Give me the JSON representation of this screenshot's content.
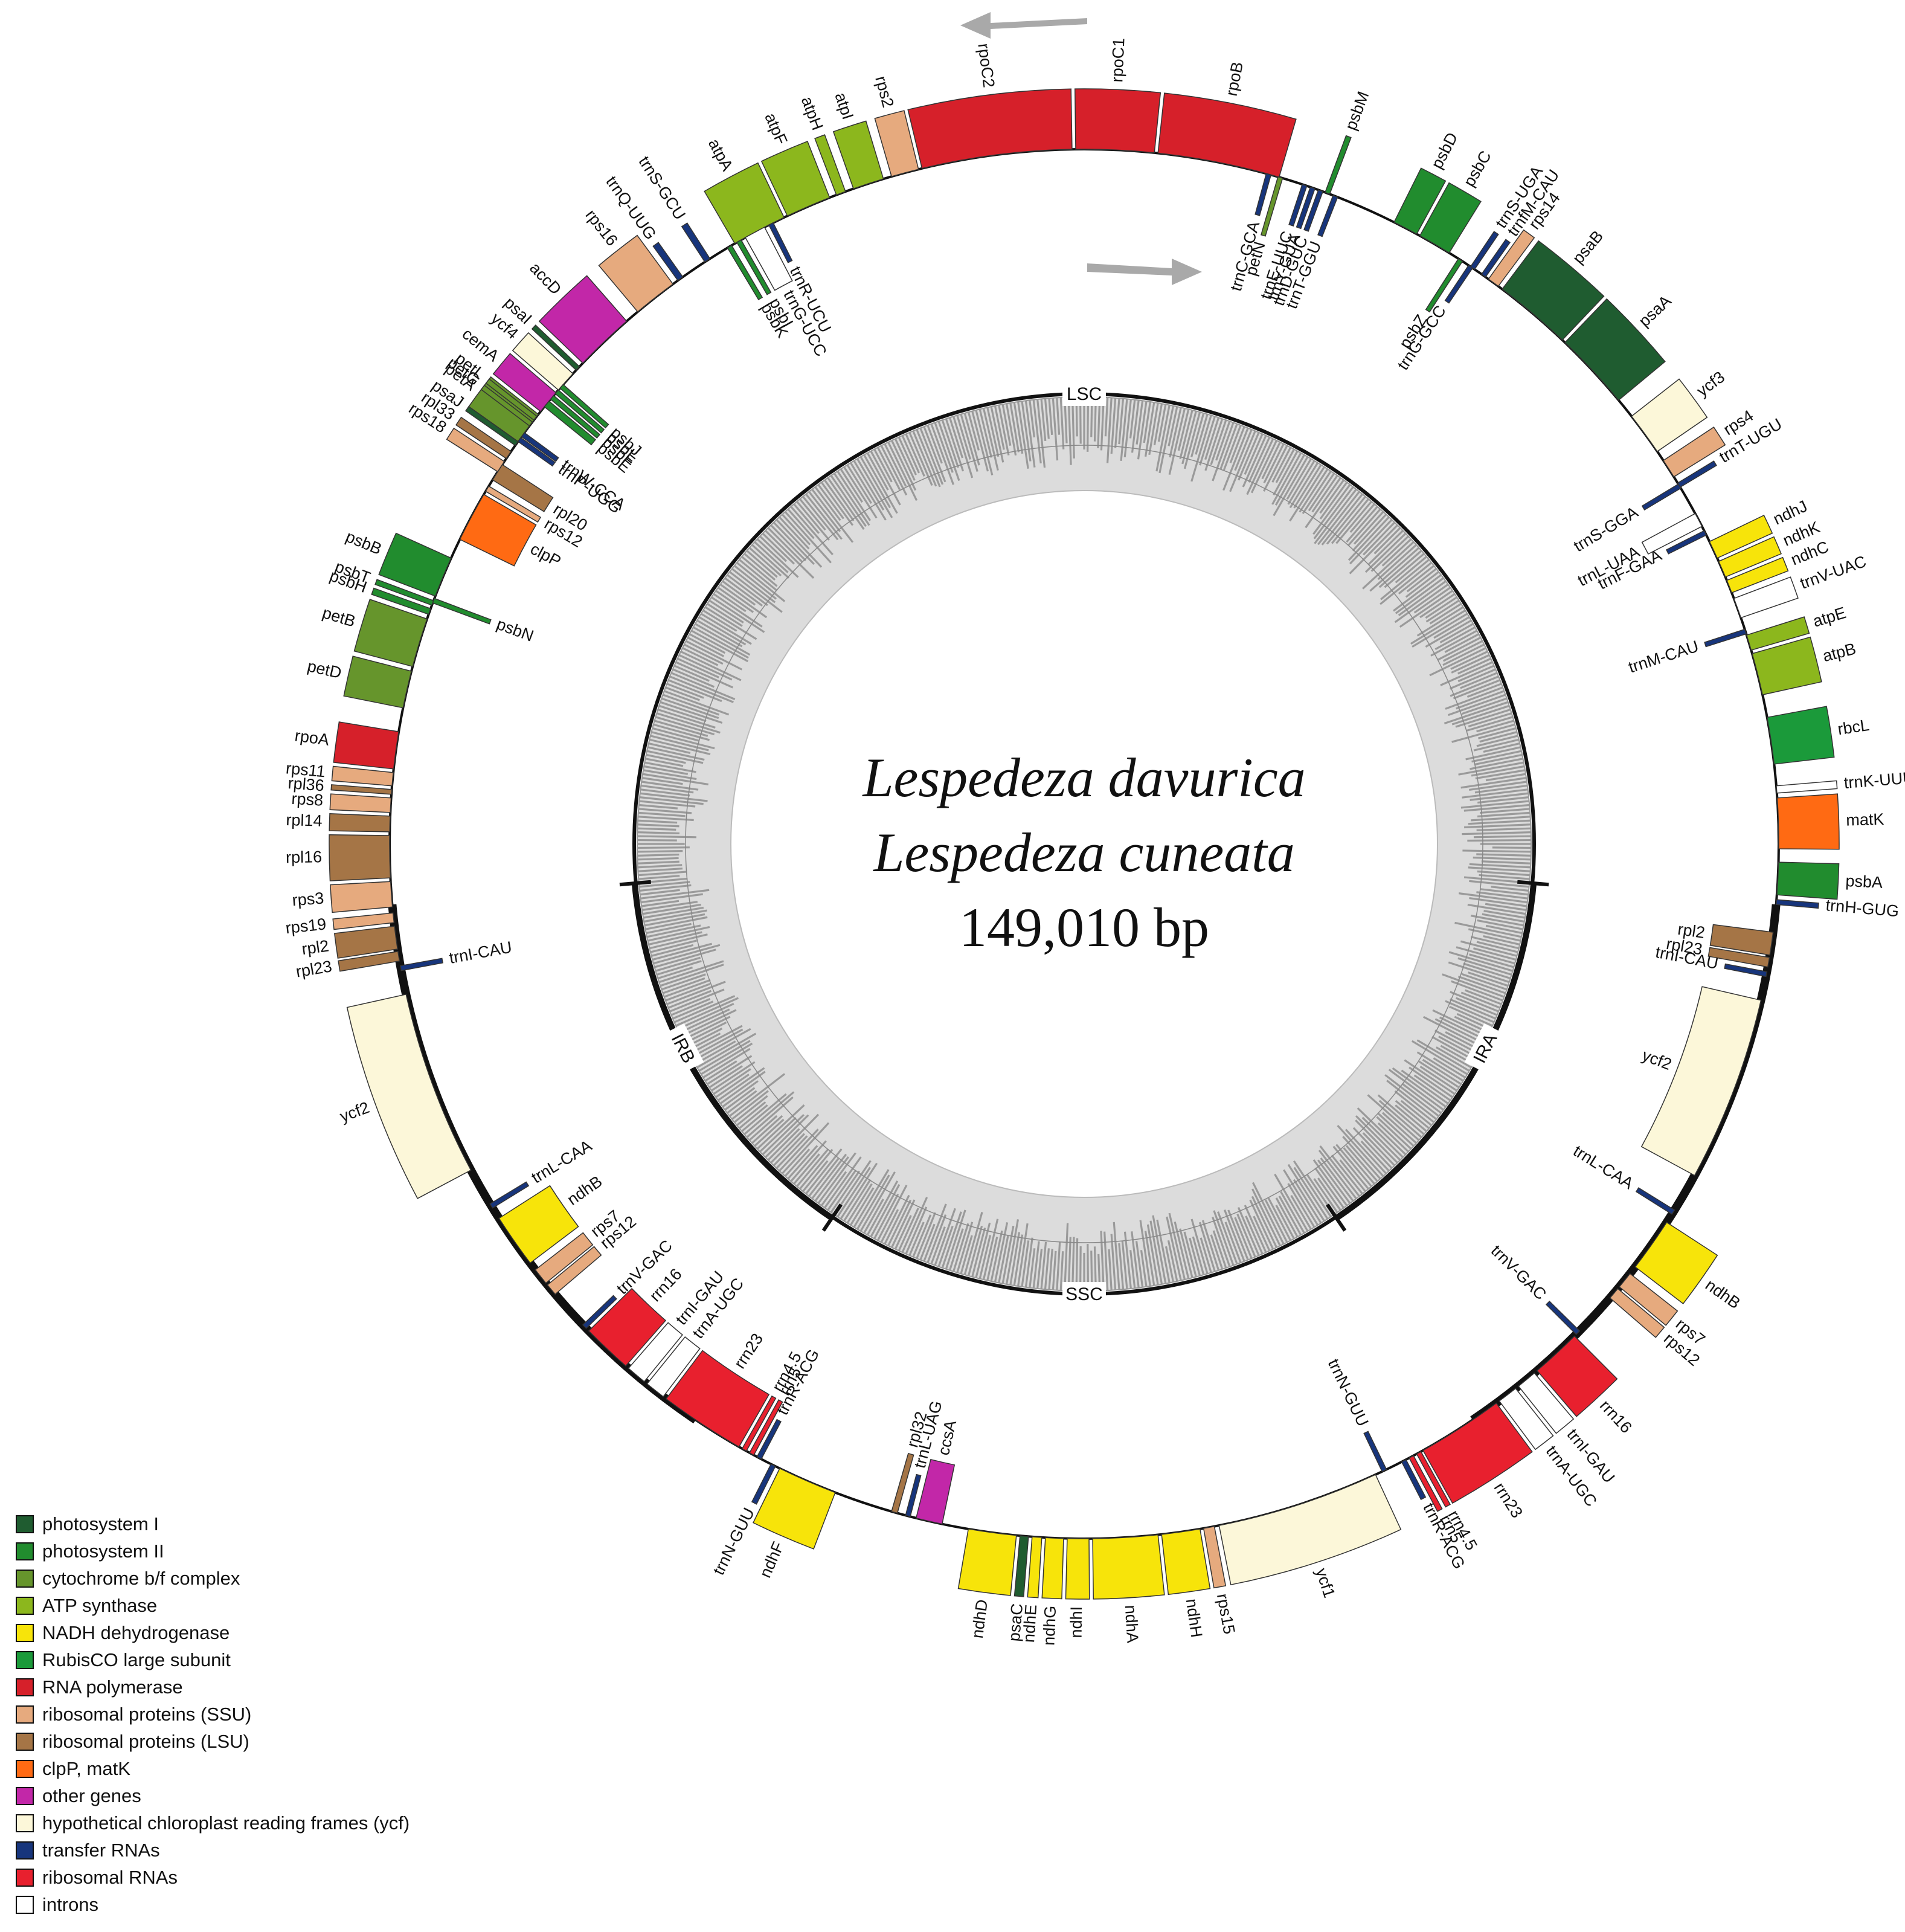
{
  "center": {
    "species_1": "Lespedeza davurica",
    "species_2": "Lespedeza cuneata",
    "genome_size": "149,010 bp"
  },
  "regions": [
    {
      "label": "LSC",
      "angle_deg": 0
    },
    {
      "label": "IRA",
      "angle_deg": 117
    },
    {
      "label": "SSC",
      "angle_deg": 180
    },
    {
      "label": "IRB",
      "angle_deg": 243
    }
  ],
  "boundaries_deg": [
    95,
    146,
    214,
    265
  ],
  "category_colors": {
    "ps1": "#1f5c30",
    "ps2": "#218c2e",
    "cyt": "#66952c",
    "atp": "#8cb71d",
    "ndh": "#f7e40a",
    "rbc": "#1b9a3a",
    "rpo": "#d6202a",
    "ssu": "#e6aa7e",
    "lsu": "#a57546",
    "clp": "#ff6a13",
    "other": "#c227a8",
    "ycf": "#fcf7d9",
    "trna": "#17357c",
    "rrna": "#e8202e",
    "intron": "#ffffff"
  },
  "genes": [
    {
      "name": "rpoC2",
      "cat": "rpo",
      "start": 346.5,
      "end": 359.0,
      "side": "out"
    },
    {
      "name": "rpoC1",
      "cat": "rpo",
      "start": 359.3,
      "end": 5.8,
      "side": "out"
    },
    {
      "name": "rpoB",
      "cat": "rpo",
      "start": 6.1,
      "end": 16.3,
      "side": "out"
    },
    {
      "name": "rps2",
      "cat": "ssu",
      "start": 343.9,
      "end": 346.2,
      "side": "out"
    },
    {
      "name": "atpI",
      "cat": "atp",
      "start": 340.6,
      "end": 343.2,
      "side": "out"
    },
    {
      "name": "atpH",
      "cat": "atp",
      "start": 339.1,
      "end": 339.9,
      "side": "out"
    },
    {
      "name": "atpF",
      "cat": "atp",
      "start": 334.7,
      "end": 338.5,
      "side": "out"
    },
    {
      "name": "atpA",
      "cat": "atp",
      "start": 329.8,
      "end": 334.4,
      "side": "out"
    },
    {
      "name": "trnS-GCU",
      "cat": "trna",
      "start": 326.9,
      "end": 327.4,
      "side": "out"
    },
    {
      "name": "trnQ-UUG",
      "cat": "trna",
      "start": 324.2,
      "end": 324.7,
      "side": "out"
    },
    {
      "name": "rps16",
      "cat": "ssu",
      "start": 320.0,
      "end": 323.7,
      "side": "out"
    },
    {
      "name": "accD",
      "cat": "other",
      "start": 313.8,
      "end": 318.8,
      "side": "out"
    },
    {
      "name": "psaI",
      "cat": "ps1",
      "start": 313.0,
      "end": 313.4,
      "side": "out"
    },
    {
      "name": "ycf4",
      "cat": "ycf",
      "start": 310.8,
      "end": 312.6,
      "side": "out"
    },
    {
      "name": "cemA",
      "cat": "other",
      "start": 308.5,
      "end": 310.5,
      "side": "out"
    },
    {
      "name": "petA",
      "cat": "cyt",
      "start": 305.3,
      "end": 308.2,
      "side": "out"
    },
    {
      "name": "psbK",
      "cat": "ps2",
      "start": 329.1,
      "end": 329.5,
      "side": "in"
    },
    {
      "name": "psbI",
      "cat": "ps2",
      "start": 330.0,
      "end": 330.4,
      "side": "in"
    },
    {
      "name": "trnG-UCC",
      "cat": "intron",
      "start": 330.8,
      "end": 332.6,
      "side": "in"
    },
    {
      "name": "trnR-UCU",
      "cat": "trna",
      "start": 333.0,
      "end": 333.4,
      "side": "in"
    },
    {
      "name": "psbM",
      "cat": "ps2",
      "start": 20.3,
      "end": 20.7,
      "side": "out"
    },
    {
      "name": "trnC-GCA",
      "cat": "trna",
      "start": 15.2,
      "end": 15.6,
      "side": "in"
    },
    {
      "name": "petN",
      "cat": "cyt",
      "start": 16.2,
      "end": 16.6,
      "side": "in"
    },
    {
      "name": "trnE-UUC",
      "cat": "trna",
      "start": 18.3,
      "end": 18.7,
      "side": "in"
    },
    {
      "name": "trnY-GUA",
      "cat": "trna",
      "start": 19.0,
      "end": 19.4,
      "side": "in"
    },
    {
      "name": "trnD-GUC",
      "cat": "trna",
      "start": 19.7,
      "end": 20.1,
      "side": "in"
    },
    {
      "name": "trnT-GGU",
      "cat": "trna",
      "start": 21.0,
      "end": 21.4,
      "side": "in"
    },
    {
      "name": "psbD",
      "cat": "ps2",
      "start": 26.5,
      "end": 28.6,
      "side": "out"
    },
    {
      "name": "psbC",
      "cat": "ps2",
      "start": 28.9,
      "end": 31.7,
      "side": "out"
    },
    {
      "name": "psbZ",
      "cat": "ps2",
      "start": 32.6,
      "end": 33.0,
      "side": "in"
    },
    {
      "name": "trnG-GCC",
      "cat": "trna",
      "start": 33.6,
      "end": 34.0,
      "side": "in"
    },
    {
      "name": "trnS-UGA",
      "cat": "trna",
      "start": 33.8,
      "end": 34.2,
      "side": "out"
    },
    {
      "name": "trnfM-CAU",
      "cat": "trna",
      "start": 34.9,
      "end": 35.3,
      "side": "out"
    },
    {
      "name": "rps14",
      "cat": "ssu",
      "start": 35.6,
      "end": 36.6,
      "side": "out"
    },
    {
      "name": "psaB",
      "cat": "ps1",
      "start": 37.0,
      "end": 43.5,
      "side": "out"
    },
    {
      "name": "psaA",
      "cat": "ps1",
      "start": 43.8,
      "end": 50.3,
      "side": "out"
    },
    {
      "name": "ycf3",
      "cat": "ycf",
      "start": 52.0,
      "end": 55.6,
      "side": "out"
    },
    {
      "name": "rps4",
      "cat": "ssu",
      "start": 56.5,
      "end": 58.1,
      "side": "out"
    },
    {
      "name": "trnT-UGU",
      "cat": "trna",
      "start": 58.7,
      "end": 59.1,
      "side": "out"
    },
    {
      "name": "trnS-GGA",
      "cat": "trna",
      "start": 58.8,
      "end": 59.2,
      "side": "in"
    },
    {
      "name": "trnL-UAA",
      "cat": "intron",
      "start": 61.6,
      "end": 62.8,
      "side": "in"
    },
    {
      "name": "trnF-GAA",
      "cat": "trna",
      "start": 63.2,
      "end": 63.6,
      "side": "in"
    },
    {
      "name": "ndhJ",
      "cat": "ndh",
      "start": 64.2,
      "end": 65.7,
      "side": "out"
    },
    {
      "name": "ndhK",
      "cat": "ndh",
      "start": 66.0,
      "end": 67.4,
      "side": "out"
    },
    {
      "name": "ndhC",
      "cat": "ndh",
      "start": 67.7,
      "end": 68.8,
      "side": "out"
    },
    {
      "name": "trnV-UAC",
      "cat": "intron",
      "start": 69.3,
      "end": 71.0,
      "side": "out"
    },
    {
      "name": "trnM-CAU",
      "cat": "trna",
      "start": 72.0,
      "end": 72.4,
      "side": "in"
    },
    {
      "name": "atpE",
      "cat": "atp",
      "start": 72.5,
      "end": 73.8,
      "side": "out"
    },
    {
      "name": "atpB",
      "cat": "atp",
      "start": 74.1,
      "end": 77.6,
      "side": "out"
    },
    {
      "name": "rbcL",
      "cat": "rbc",
      "start": 79.5,
      "end": 83.4,
      "side": "out"
    },
    {
      "name": "trnK-UUU",
      "cat": "intron",
      "start": 85.2,
      "end": 85.8,
      "side": "out"
    },
    {
      "name": "matK",
      "cat": "clp",
      "start": 86.2,
      "end": 90.4,
      "side": "out"
    },
    {
      "name": "psbA",
      "cat": "ps2",
      "start": 91.5,
      "end": 94.2,
      "side": "out"
    },
    {
      "name": "trnH-GUG",
      "cat": "trna",
      "start": 94.6,
      "end": 95.0,
      "side": "out"
    },
    {
      "name": "rpl2",
      "cat": "lsu",
      "start": 97.3,
      "end": 99.2,
      "side": "in"
    },
    {
      "name": "rpl23",
      "cat": "lsu",
      "start": 99.4,
      "end": 100.2,
      "side": "in"
    },
    {
      "name": "trnI-CAU",
      "cat": "trna",
      "start": 100.6,
      "end": 101.0,
      "side": "in"
    },
    {
      "name": "ycf2",
      "cat": "ycf",
      "start": 103.0,
      "end": 118.5,
      "side": "in"
    },
    {
      "name": "trnL-CAA",
      "cat": "trna",
      "start": 121.8,
      "end": 122.2,
      "side": "in"
    },
    {
      "name": "ndhB",
      "cat": "ndh",
      "start": 123.0,
      "end": 127.5,
      "side": "out"
    },
    {
      "name": "rps7",
      "cat": "ssu",
      "start": 128.2,
      "end": 129.6,
      "side": "out"
    },
    {
      "name": "rps12",
      "cat": "ssu",
      "start": 129.8,
      "end": 130.8,
      "side": "out"
    },
    {
      "name": "trnV-GAC",
      "cat": "trna",
      "start": 134.5,
      "end": 134.9,
      "side": "in"
    },
    {
      "name": "rrn16",
      "cat": "rrna",
      "start": 135.1,
      "end": 139.3,
      "side": "out"
    },
    {
      "name": "trnI-GAU",
      "cat": "intron",
      "start": 139.6,
      "end": 141.3,
      "side": "out"
    },
    {
      "name": "trnA-UGC",
      "cat": "intron",
      "start": 141.6,
      "end": 143.3,
      "side": "out"
    },
    {
      "name": "rrn23",
      "cat": "rrna",
      "start": 143.6,
      "end": 150.8,
      "side": "out"
    },
    {
      "name": "rrn4.5",
      "cat": "rrna",
      "start": 151.0,
      "end": 151.4,
      "side": "out"
    },
    {
      "name": "rrn5",
      "cat": "rrna",
      "start": 151.7,
      "end": 152.1,
      "side": "out"
    },
    {
      "name": "trnR-ACG",
      "cat": "trna",
      "start": 152.4,
      "end": 152.8,
      "side": "out"
    },
    {
      "name": "trnN-GUU",
      "cat": "trna",
      "start": 154.2,
      "end": 154.6,
      "side": "in"
    },
    {
      "name": "ycf1",
      "cat": "ycf",
      "start": 155.2,
      "end": 168.8,
      "side": "out"
    },
    {
      "name": "rps15",
      "cat": "ssu",
      "start": 169.2,
      "end": 170.1,
      "side": "out"
    },
    {
      "name": "ndhH",
      "cat": "ndh",
      "start": 170.4,
      "end": 173.6,
      "side": "out"
    },
    {
      "name": "ndhA",
      "cat": "ndh",
      "start": 173.9,
      "end": 179.3,
      "side": "out"
    },
    {
      "name": "ndhI",
      "cat": "ndh",
      "start": 179.6,
      "end": 181.4,
      "side": "out"
    },
    {
      "name": "ndhG",
      "cat": "ndh",
      "start": 181.7,
      "end": 183.2,
      "side": "out"
    },
    {
      "name": "ndhE",
      "cat": "ndh",
      "start": 183.5,
      "end": 184.3,
      "side": "out"
    },
    {
      "name": "psaC",
      "cat": "ps1",
      "start": 184.6,
      "end": 185.3,
      "side": "out"
    },
    {
      "name": "ndhD",
      "cat": "ndh",
      "start": 185.6,
      "end": 189.6,
      "side": "out"
    },
    {
      "name": "ccsA",
      "cat": "other",
      "start": 191.8,
      "end": 194.0,
      "side": "in"
    },
    {
      "name": "trnL-UAG",
      "cat": "trna",
      "start": 194.5,
      "end": 194.9,
      "side": "in"
    },
    {
      "name": "rpl32",
      "cat": "lsu",
      "start": 195.6,
      "end": 196.1,
      "side": "in"
    },
    {
      "name": "ndhF",
      "cat": "ndh",
      "start": 201.0,
      "end": 206.0,
      "side": "out"
    },
    {
      "name": "trnN-GUU",
      "cat": "trna",
      "start": 206.4,
      "end": 206.8,
      "side": "out"
    },
    {
      "name": "trnR-ACG",
      "cat": "trna",
      "start": 207.7,
      "end": 208.1,
      "side": "in"
    },
    {
      "name": "rrn5",
      "cat": "rrna",
      "start": 208.4,
      "end": 208.8,
      "side": "in"
    },
    {
      "name": "rrn4.5",
      "cat": "rrna",
      "start": 209.1,
      "end": 209.5,
      "side": "in"
    },
    {
      "name": "rrn23",
      "cat": "rrna",
      "start": 209.8,
      "end": 217.0,
      "side": "in"
    },
    {
      "name": "trnA-UGC",
      "cat": "intron",
      "start": 217.3,
      "end": 219.0,
      "side": "in"
    },
    {
      "name": "trnI-GAU",
      "cat": "intron",
      "start": 219.3,
      "end": 221.0,
      "side": "in"
    },
    {
      "name": "rrn16",
      "cat": "rrna",
      "start": 221.3,
      "end": 225.5,
      "side": "in"
    },
    {
      "name": "trnV-GAC",
      "cat": "trna",
      "start": 225.8,
      "end": 226.2,
      "side": "in"
    },
    {
      "name": "rps12",
      "cat": "ssu",
      "start": 229.6,
      "end": 230.6,
      "side": "in"
    },
    {
      "name": "rps7",
      "cat": "ssu",
      "start": 230.8,
      "end": 232.2,
      "side": "in"
    },
    {
      "name": "ndhB",
      "cat": "ndh",
      "start": 232.9,
      "end": 237.4,
      "side": "in"
    },
    {
      "name": "trnL-CAA",
      "cat": "trna",
      "start": 238.4,
      "end": 238.8,
      "side": "in"
    },
    {
      "name": "ycf2",
      "cat": "ycf",
      "start": 242.0,
      "end": 257.5,
      "side": "out"
    },
    {
      "name": "trnI-CAU",
      "cat": "trna",
      "start": 259.5,
      "end": 259.9,
      "side": "in"
    },
    {
      "name": "rpl23",
      "cat": "lsu",
      "start": 260.3,
      "end": 261.1,
      "side": "out"
    },
    {
      "name": "rpl2",
      "cat": "lsu",
      "start": 261.3,
      "end": 263.2,
      "side": "out"
    },
    {
      "name": "rps19",
      "cat": "ssu",
      "start": 263.5,
      "end": 264.3,
      "side": "out"
    },
    {
      "name": "rps3",
      "cat": "ssu",
      "start": 264.8,
      "end": 266.9,
      "side": "out"
    },
    {
      "name": "rpl16",
      "cat": "lsu",
      "start": 267.2,
      "end": 270.7,
      "side": "out"
    },
    {
      "name": "rpl14",
      "cat": "lsu",
      "start": 271.0,
      "end": 272.3,
      "side": "out"
    },
    {
      "name": "rps8",
      "cat": "ssu",
      "start": 272.6,
      "end": 273.8,
      "side": "out"
    },
    {
      "name": "rpl36",
      "cat": "lsu",
      "start": 274.1,
      "end": 274.5,
      "side": "out"
    },
    {
      "name": "rps11",
      "cat": "ssu",
      "start": 274.8,
      "end": 275.9,
      "side": "out"
    },
    {
      "name": "rpoA",
      "cat": "rpo",
      "start": 276.2,
      "end": 279.3,
      "side": "out"
    },
    {
      "name": "petD",
      "cat": "cyt",
      "start": 281.3,
      "end": 284.4,
      "side": "out"
    },
    {
      "name": "petB",
      "cat": "cyt",
      "start": 284.8,
      "end": 288.9,
      "side": "out"
    },
    {
      "name": "psbH",
      "cat": "ps2",
      "start": 289.3,
      "end": 289.8,
      "side": "out"
    },
    {
      "name": "psbT",
      "cat": "ps2",
      "start": 290.1,
      "end": 290.5,
      "side": "out"
    },
    {
      "name": "psbN",
      "cat": "ps2",
      "start": 290.3,
      "end": 290.7,
      "side": "in"
    },
    {
      "name": "psbB",
      "cat": "ps2",
      "start": 290.9,
      "end": 294.3,
      "side": "out"
    },
    {
      "name": "clpP",
      "cat": "clp",
      "start": 296.0,
      "end": 300.2,
      "side": "in"
    },
    {
      "name": "rps12",
      "cat": "ssu",
      "start": 300.5,
      "end": 301.0,
      "side": "in"
    },
    {
      "name": "rpl20",
      "cat": "lsu",
      "start": 301.6,
      "end": 303.1,
      "side": "in"
    },
    {
      "name": "rps18",
      "cat": "ssu",
      "start": 302.4,
      "end": 303.4,
      "side": "out"
    },
    {
      "name": "rpl33",
      "cat": "lsu",
      "start": 303.7,
      "end": 304.4,
      "side": "out"
    },
    {
      "name": "psaJ",
      "cat": "ps1",
      "start": 305.0,
      "end": 305.4,
      "side": "out"
    },
    {
      "name": "trnP-UGG",
      "cat": "trna",
      "start": 305.4,
      "end": 305.8,
      "side": "in"
    },
    {
      "name": "trnW-CCA",
      "cat": "trna",
      "start": 305.9,
      "end": 306.3,
      "side": "in"
    },
    {
      "name": "petG",
      "cat": "cyt",
      "start": 307.0,
      "end": 307.4,
      "side": "out"
    },
    {
      "name": "petL",
      "cat": "cyt",
      "start": 307.6,
      "end": 308.0,
      "side": "out"
    },
    {
      "name": "psbE",
      "cat": "ps2",
      "start": 309.0,
      "end": 309.6,
      "side": "in"
    },
    {
      "name": "psbF",
      "cat": "ps2",
      "start": 309.8,
      "end": 310.2,
      "side": "in"
    },
    {
      "name": "psbL",
      "cat": "ps2",
      "start": 310.4,
      "end": 310.8,
      "side": "in"
    },
    {
      "name": "psbJ",
      "cat": "ps2",
      "start": 311.0,
      "end": 311.4,
      "side": "in"
    }
  ],
  "legend": [
    {
      "label": "photosystem I",
      "color": "#1f5c30"
    },
    {
      "label": "photosystem II",
      "color": "#218c2e"
    },
    {
      "label": "cytochrome b/f complex",
      "color": "#66952c"
    },
    {
      "label": "ATP synthase",
      "color": "#8cb71d"
    },
    {
      "label": "NADH dehydrogenase",
      "color": "#f7e40a"
    },
    {
      "label": "RubisCO large subunit",
      "color": "#1b9a3a"
    },
    {
      "label": "RNA polymerase",
      "color": "#d6202a"
    },
    {
      "label": "ribosomal proteins (SSU)",
      "color": "#e6aa7e"
    },
    {
      "label": "ribosomal proteins (LSU)",
      "color": "#a57546"
    },
    {
      "label": "clpP, matK",
      "color": "#ff6a13"
    },
    {
      "label": "other genes",
      "color": "#c227a8"
    },
    {
      "label": "hypothetical chloroplast reading frames (ycf)",
      "color": "#fcf7d9"
    },
    {
      "label": "transfer RNAs",
      "color": "#17357c"
    },
    {
      "label": "ribosomal RNAs",
      "color": "#e8202e"
    },
    {
      "label": "introns",
      "color": "#ffffff"
    }
  ]
}
